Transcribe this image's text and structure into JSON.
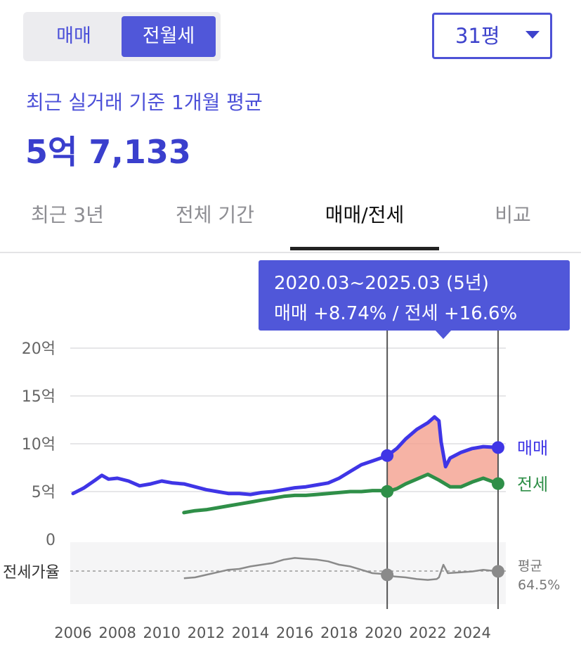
{
  "toggle": {
    "sale_label": "매매",
    "rent_label": "전월세",
    "selected": "전월세"
  },
  "size_select": {
    "value": "31평"
  },
  "summary": {
    "caption": "최근 실거래 기준 1개월 평균",
    "price": "5억 7,133"
  },
  "tabs": [
    {
      "label": "최근 3년"
    },
    {
      "label": "전체 기간"
    },
    {
      "label": "매매/전세",
      "active": true
    },
    {
      "label": "비교"
    }
  ],
  "tooltip": {
    "period": "2020.03~2025.03 (5년)",
    "change": "매매 +8.74%  /  전세 +16.6%"
  },
  "colors": {
    "accent": "#5057d9",
    "sale_line": "#3f35e6",
    "jeonse_line": "#2f8f48",
    "ratio_line": "#8a8a8a",
    "shade": "#f4a08e"
  },
  "chart_data": {
    "type": "line",
    "x_ticks": [
      "2006",
      "2008",
      "2010",
      "2012",
      "2014",
      "2016",
      "2018",
      "2020",
      "2022",
      "2024"
    ],
    "y_ticks": [
      "0",
      "5억",
      "10억",
      "15억",
      "20억"
    ],
    "ylim": [
      0,
      20
    ],
    "xlim": [
      2005.9,
      2025.5
    ],
    "grid": true,
    "series": [
      {
        "name": "매매",
        "color": "#3f35e6",
        "points": [
          [
            2006.0,
            4.8
          ],
          [
            2006.5,
            5.4
          ],
          [
            2007.0,
            6.2
          ],
          [
            2007.3,
            6.7
          ],
          [
            2007.6,
            6.3
          ],
          [
            2008.0,
            6.4
          ],
          [
            2008.5,
            6.1
          ],
          [
            2009.0,
            5.6
          ],
          [
            2009.5,
            5.8
          ],
          [
            2010.0,
            6.1
          ],
          [
            2010.5,
            5.9
          ],
          [
            2011.0,
            5.8
          ],
          [
            2011.5,
            5.5
          ],
          [
            2012.0,
            5.2
          ],
          [
            2012.5,
            5.0
          ],
          [
            2013.0,
            4.8
          ],
          [
            2013.5,
            4.8
          ],
          [
            2014.0,
            4.7
          ],
          [
            2014.5,
            4.9
          ],
          [
            2015.0,
            5.0
          ],
          [
            2015.5,
            5.2
          ],
          [
            2016.0,
            5.4
          ],
          [
            2016.5,
            5.5
          ],
          [
            2017.0,
            5.7
          ],
          [
            2017.5,
            5.9
          ],
          [
            2018.0,
            6.4
          ],
          [
            2018.5,
            7.1
          ],
          [
            2019.0,
            7.8
          ],
          [
            2019.5,
            8.2
          ],
          [
            2020.0,
            8.6
          ],
          [
            2020.2,
            8.8
          ],
          [
            2020.6,
            9.5
          ],
          [
            2021.0,
            10.5
          ],
          [
            2021.5,
            11.5
          ],
          [
            2022.0,
            12.2
          ],
          [
            2022.3,
            12.8
          ],
          [
            2022.5,
            12.4
          ],
          [
            2022.6,
            10.2
          ],
          [
            2022.8,
            7.6
          ],
          [
            2023.0,
            8.5
          ],
          [
            2023.5,
            9.1
          ],
          [
            2024.0,
            9.5
          ],
          [
            2024.5,
            9.7
          ],
          [
            2025.2,
            9.6
          ]
        ],
        "end_label": "매매"
      },
      {
        "name": "전세",
        "color": "#2f8f48",
        "points": [
          [
            2011.0,
            2.8
          ],
          [
            2011.5,
            3.0
          ],
          [
            2012.0,
            3.1
          ],
          [
            2012.5,
            3.3
          ],
          [
            2013.0,
            3.5
          ],
          [
            2013.5,
            3.7
          ],
          [
            2014.0,
            3.9
          ],
          [
            2014.5,
            4.1
          ],
          [
            2015.0,
            4.3
          ],
          [
            2015.5,
            4.5
          ],
          [
            2016.0,
            4.6
          ],
          [
            2016.5,
            4.6
          ],
          [
            2017.0,
            4.7
          ],
          [
            2017.5,
            4.8
          ],
          [
            2018.0,
            4.9
          ],
          [
            2018.5,
            5.0
          ],
          [
            2019.0,
            5.0
          ],
          [
            2019.5,
            5.1
          ],
          [
            2020.0,
            5.1
          ],
          [
            2020.2,
            5.0
          ],
          [
            2020.6,
            5.3
          ],
          [
            2021.0,
            5.8
          ],
          [
            2021.5,
            6.3
          ],
          [
            2022.0,
            6.8
          ],
          [
            2022.5,
            6.2
          ],
          [
            2023.0,
            5.5
          ],
          [
            2023.5,
            5.5
          ],
          [
            2024.0,
            6.0
          ],
          [
            2024.5,
            6.4
          ],
          [
            2025.2,
            5.8
          ]
        ],
        "end_label": "전세"
      }
    ],
    "highlight_range": [
      "2020.03",
      "2025.03"
    ],
    "ratio_panel": {
      "label": "전세가율",
      "avg_label": "평균",
      "avg_value": "64.5%",
      "avg_pct": 64.5,
      "points": [
        [
          2011.0,
          56
        ],
        [
          2011.5,
          57
        ],
        [
          2012.0,
          60
        ],
        [
          2012.5,
          63
        ],
        [
          2013.0,
          66
        ],
        [
          2013.5,
          67
        ],
        [
          2014.0,
          70
        ],
        [
          2014.5,
          72
        ],
        [
          2015.0,
          74
        ],
        [
          2015.5,
          78
        ],
        [
          2016.0,
          80
        ],
        [
          2016.5,
          79
        ],
        [
          2017.0,
          78
        ],
        [
          2017.5,
          76
        ],
        [
          2018.0,
          72
        ],
        [
          2018.5,
          70
        ],
        [
          2019.0,
          66
        ],
        [
          2019.5,
          62
        ],
        [
          2020.0,
          61
        ],
        [
          2020.5,
          58
        ],
        [
          2021.0,
          57
        ],
        [
          2021.5,
          55
        ],
        [
          2022.0,
          54
        ],
        [
          2022.4,
          55
        ],
        [
          2022.5,
          57
        ],
        [
          2022.7,
          72
        ],
        [
          2022.9,
          62
        ],
        [
          2023.5,
          63
        ],
        [
          2024.0,
          64
        ],
        [
          2024.5,
          66
        ],
        [
          2025.2,
          64
        ]
      ]
    }
  }
}
